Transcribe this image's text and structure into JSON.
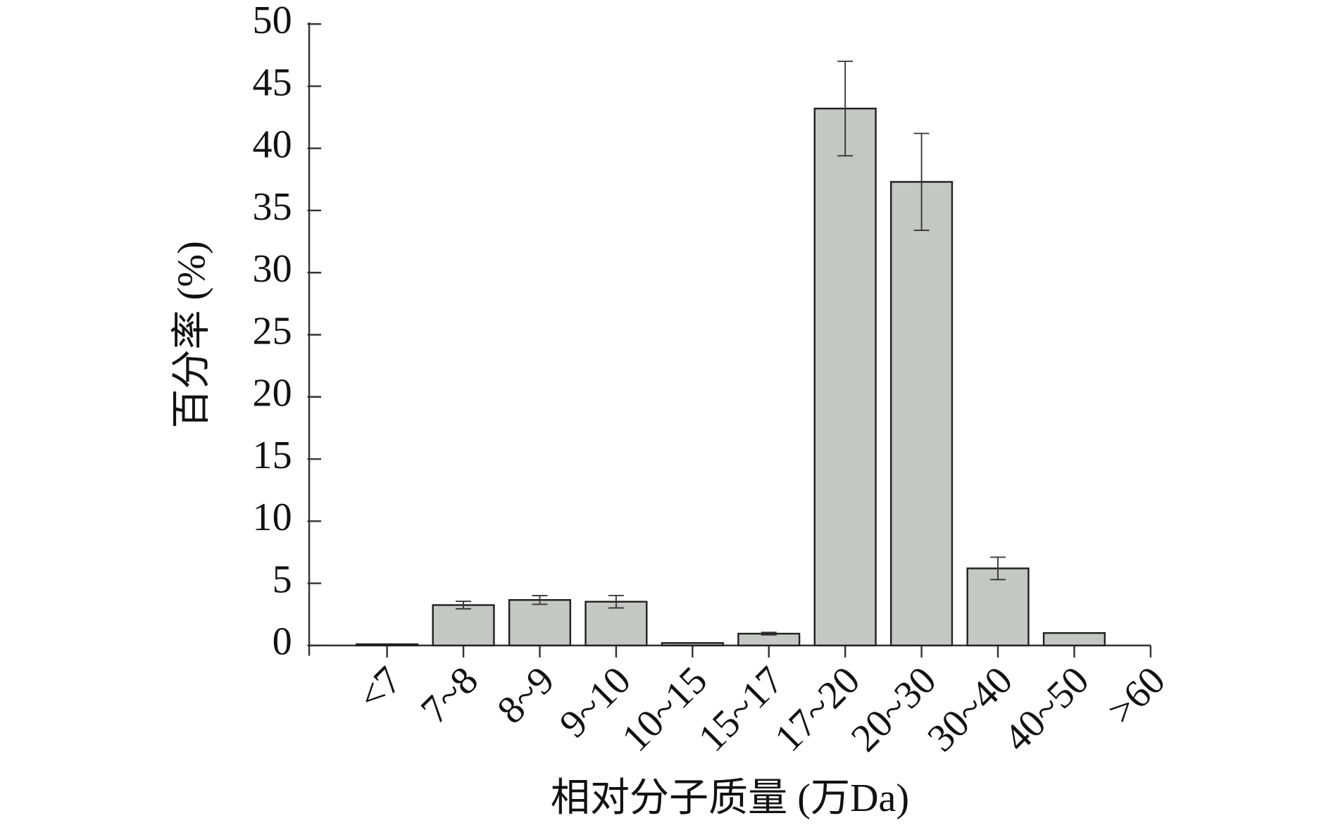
{
  "chart_data": {
    "type": "bar",
    "x_label": "相对分子质量 (万Da)",
    "y_label": "百分率 (%)",
    "categories": [
      "<7",
      "7~8",
      "8~9",
      "9~10",
      "10~15",
      "15~17",
      "17~20",
      "20~30",
      "30~40",
      "40~50",
      ">60"
    ],
    "values": [
      0.1,
      3.25,
      3.66,
      3.52,
      0.2,
      0.95,
      43.2,
      37.3,
      6.2,
      1.0,
      0
    ],
    "errors": [
      null,
      0.3,
      0.35,
      0.5,
      null,
      0.1,
      3.8,
      3.9,
      0.9,
      null,
      null
    ],
    "color": "#c4c8c2",
    "ylim": [
      0,
      50
    ],
    "yticks": [
      0,
      5,
      10,
      15,
      20,
      25,
      30,
      35,
      40,
      45,
      50
    ]
  }
}
